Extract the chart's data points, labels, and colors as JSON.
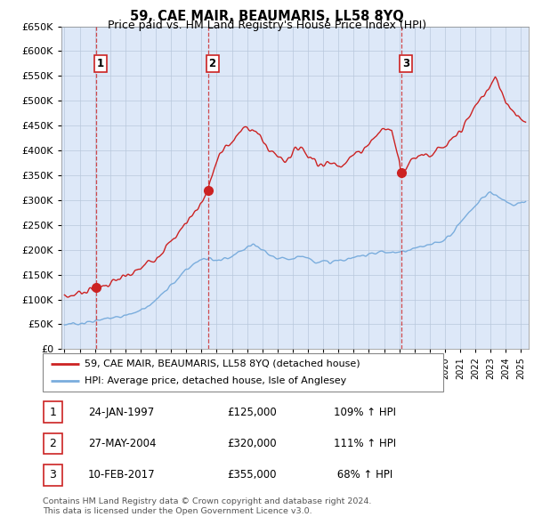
{
  "title": "59, CAE MAIR, BEAUMARIS, LL58 8YQ",
  "subtitle": "Price paid vs. HM Land Registry's House Price Index (HPI)",
  "ylim": [
    0,
    650000
  ],
  "yticks": [
    0,
    50000,
    100000,
    150000,
    200000,
    250000,
    300000,
    350000,
    400000,
    450000,
    500000,
    550000,
    600000,
    650000
  ],
  "xlim_start": 1994.8,
  "xlim_end": 2025.5,
  "sale_dates": [
    1997.07,
    2004.42,
    2017.12
  ],
  "sale_prices": [
    125000,
    320000,
    355000
  ],
  "sale_labels": [
    "1",
    "2",
    "3"
  ],
  "red_line_color": "#cc2222",
  "blue_line_color": "#7aaddd",
  "sale_vline_color": "#cc2222",
  "marker_color": "#cc2222",
  "background_plot": "#dde8f8",
  "legend_entries": [
    "59, CAE MAIR, BEAUMARIS, LL58 8YQ (detached house)",
    "HPI: Average price, detached house, Isle of Anglesey"
  ],
  "table_rows": [
    [
      "1",
      "24-JAN-1997",
      "£125,000",
      "109% ↑ HPI"
    ],
    [
      "2",
      "27-MAY-2004",
      "£320,000",
      "111% ↑ HPI"
    ],
    [
      "3",
      "10-FEB-2017",
      "£355,000",
      " 68% ↑ HPI"
    ]
  ],
  "footnote": "Contains HM Land Registry data © Crown copyright and database right 2024.\nThis data is licensed under the Open Government Licence v3.0.",
  "grid_color": "#b8c8dc"
}
